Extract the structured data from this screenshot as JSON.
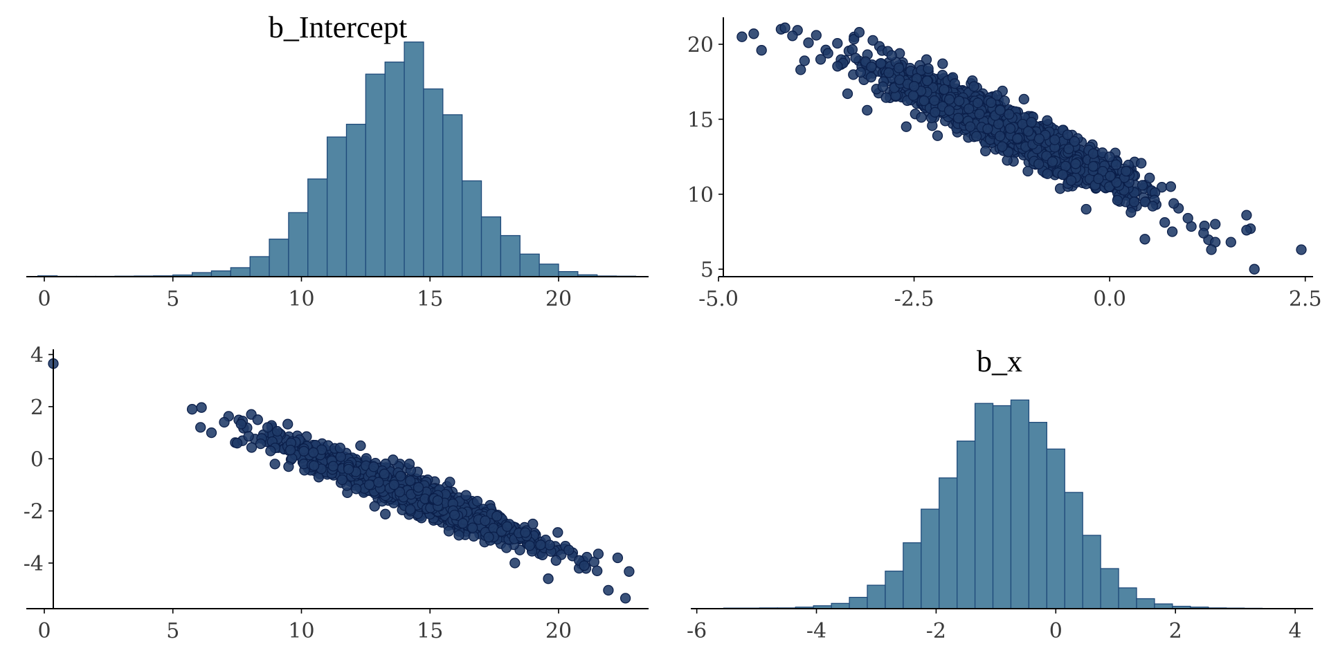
{
  "figure": {
    "background": "#ffffff"
  },
  "colors": {
    "hist_fill": "#5285a2",
    "hist_edge": "#1f4a7a",
    "point_fill": "#1f3a68",
    "point_edge": "#0b1f4a",
    "axis": "#000000",
    "tick_text": "#3a3a3a"
  },
  "chart_data": [
    {
      "id": "hist-intercept",
      "type": "bar",
      "panel": "top-left",
      "title": "b_Intercept",
      "xlabel": "",
      "ylabel": "",
      "xlim": [
        -0.7,
        23.5
      ],
      "ylim": [
        0,
        0.127
      ],
      "show_y_axis": false,
      "grid": false,
      "x_ticks": [
        0,
        5,
        10,
        15,
        20
      ],
      "x_tick_labels": [
        "0",
        "5",
        "10",
        "15",
        "20"
      ],
      "bin_edges": [
        -0.25,
        0.5,
        1.25,
        2.0,
        2.75,
        3.5,
        4.25,
        5.0,
        5.75,
        6.5,
        7.25,
        8.0,
        8.75,
        9.5,
        10.25,
        11.0,
        11.75,
        12.5,
        13.25,
        14.0,
        14.75,
        15.5,
        16.25,
        17.0,
        17.75,
        18.5,
        19.25,
        20.0,
        20.75,
        21.5,
        22.25,
        23.0
      ],
      "values": [
        0.0005,
        0.0002,
        0.0002,
        0.0002,
        0.0003,
        0.0004,
        0.0005,
        0.001,
        0.0024,
        0.0034,
        0.0053,
        0.0118,
        0.0221,
        0.0377,
        0.0575,
        0.0822,
        0.0897,
        0.1192,
        0.1263,
        0.1381,
        0.1105,
        0.0953,
        0.0564,
        0.0352,
        0.0242,
        0.0133,
        0.0074,
        0.003,
        0.0011,
        0.0004,
        0.0003
      ]
    },
    {
      "id": "scatter-bx-vs-intercept",
      "type": "scatter",
      "panel": "top-right",
      "title": "",
      "xlabel": "",
      "ylabel": "",
      "xlim": [
        -5.0,
        2.6
      ],
      "ylim": [
        4.5,
        21.8
      ],
      "grid": false,
      "x_ticks": [
        -5.0,
        -2.5,
        0.0,
        2.5
      ],
      "x_tick_labels": [
        "-5.0",
        "-2.5",
        "0.0",
        "2.5"
      ],
      "y_ticks": [
        5,
        10,
        15,
        20
      ],
      "y_tick_labels": [
        "5",
        "10",
        "15",
        "20"
      ],
      "trend": {
        "slope": -2.45,
        "intercept": 11.1,
        "x_center": -1.3,
        "x_sd": 0.8,
        "resid_sd": 0.75
      },
      "points": [
        [
          -4.7,
          20.5
        ],
        [
          -4.55,
          20.7
        ],
        [
          -4.45,
          19.6
        ],
        [
          -4.2,
          21.0
        ],
        [
          -4.15,
          21.1
        ],
        [
          -3.95,
          18.3
        ],
        [
          -3.9,
          18.9
        ],
        [
          -3.85,
          20.1
        ],
        [
          -3.75,
          20.6
        ],
        [
          -3.6,
          19.4
        ],
        [
          -3.35,
          16.7
        ],
        [
          -3.2,
          20.8
        ],
        [
          -3.1,
          15.6
        ],
        [
          -2.6,
          14.5
        ],
        [
          -2.2,
          13.9
        ],
        [
          -2.5,
          17.2
        ],
        [
          -1.8,
          15.7
        ],
        [
          -1.4,
          15.6
        ],
        [
          -1.0,
          14.8
        ],
        [
          -0.9,
          13.7
        ],
        [
          -0.6,
          11.3
        ],
        [
          -0.3,
          9.0
        ],
        [
          0.0,
          12.5
        ],
        [
          0.1,
          9.6
        ],
        [
          0.45,
          7.0
        ],
        [
          0.55,
          9.2
        ],
        [
          0.8,
          7.5
        ],
        [
          1.0,
          8.4
        ],
        [
          1.2,
          7.4
        ],
        [
          1.35,
          6.8
        ],
        [
          1.3,
          6.3
        ],
        [
          1.35,
          8.0
        ],
        [
          1.55,
          6.8
        ],
        [
          1.75,
          8.6
        ],
        [
          1.8,
          7.7
        ],
        [
          1.75,
          7.6
        ],
        [
          1.85,
          5.0
        ],
        [
          2.45,
          6.3
        ]
      ]
    },
    {
      "id": "scatter-intercept-vs-bx",
      "type": "scatter",
      "panel": "bottom-left",
      "title": "",
      "xlabel": "",
      "ylabel": "",
      "xlim": [
        -0.7,
        23.5
      ],
      "ylim": [
        -5.75,
        4.2
      ],
      "grid": false,
      "x_ticks": [
        0,
        5,
        10,
        15,
        20
      ],
      "x_tick_labels": [
        "0",
        "5",
        "10",
        "15",
        "20"
      ],
      "y_ticks": [
        -4,
        -2,
        0,
        2,
        4
      ],
      "y_tick_labels": [
        "-4",
        "-2",
        "0",
        "2",
        "4"
      ],
      "trend": {
        "slope": -0.385,
        "intercept": 4.14,
        "x_center": 14.2,
        "x_sd": 2.4,
        "resid_sd": 0.31
      },
      "points": [
        [
          0.35,
          3.65
        ],
        [
          5.75,
          1.9
        ],
        [
          6.5,
          1.0
        ],
        [
          7.0,
          1.4
        ],
        [
          7.5,
          0.6
        ],
        [
          8.05,
          1.7
        ],
        [
          8.3,
          1.5
        ],
        [
          8.8,
          0.3
        ],
        [
          9.5,
          -0.3
        ],
        [
          12.3,
          0.5
        ],
        [
          13.0,
          -0.9
        ],
        [
          14.2,
          -0.2
        ],
        [
          15.3,
          -1.6
        ],
        [
          16.4,
          -1.4
        ],
        [
          17.6,
          -2.2
        ],
        [
          18.0,
          -2.6
        ],
        [
          18.3,
          -4.0
        ],
        [
          19.0,
          -2.5
        ],
        [
          19.3,
          -3.3
        ],
        [
          19.6,
          -4.6
        ],
        [
          19.9,
          -3.9
        ],
        [
          20.4,
          -3.5
        ],
        [
          20.8,
          -3.9
        ],
        [
          21.0,
          -4.1
        ],
        [
          21.5,
          -4.3
        ],
        [
          22.3,
          -3.8
        ],
        [
          22.6,
          -5.35
        ]
      ]
    },
    {
      "id": "hist-bx",
      "type": "bar",
      "panel": "bottom-right",
      "title": "b_x",
      "xlabel": "",
      "ylabel": "",
      "xlim": [
        -6.1,
        4.3
      ],
      "ylim": [
        0,
        0.543
      ],
      "show_y_axis": false,
      "grid": false,
      "x_ticks": [
        -6,
        -4,
        -2,
        0,
        2,
        4
      ],
      "x_tick_labels": [
        "-6",
        "-4",
        "-2",
        "0",
        "2",
        "4"
      ],
      "bin_edges": [
        -5.55,
        -5.25,
        -4.95,
        -4.65,
        -4.35,
        -4.05,
        -3.75,
        -3.45,
        -3.15,
        -2.85,
        -2.55,
        -2.25,
        -1.95,
        -1.65,
        -1.35,
        -1.05,
        -0.75,
        -0.45,
        -0.15,
        0.15,
        0.45,
        0.75,
        1.05,
        1.35,
        1.65,
        1.95,
        2.25,
        2.55,
        2.85,
        3.15,
        3.45,
        3.75
      ],
      "values": [
        0.0015,
        0.0015,
        0.002,
        0.002,
        0.004,
        0.0075,
        0.0135,
        0.029,
        0.06,
        0.096,
        0.1685,
        0.2545,
        0.3344,
        0.4286,
        0.5249,
        0.5191,
        0.5336,
        0.4765,
        0.4082,
        0.2973,
        0.1876,
        0.1025,
        0.0532,
        0.0256,
        0.0122,
        0.0061,
        0.0041,
        0.002,
        0.0015,
        0.001,
        0.0005
      ]
    }
  ]
}
